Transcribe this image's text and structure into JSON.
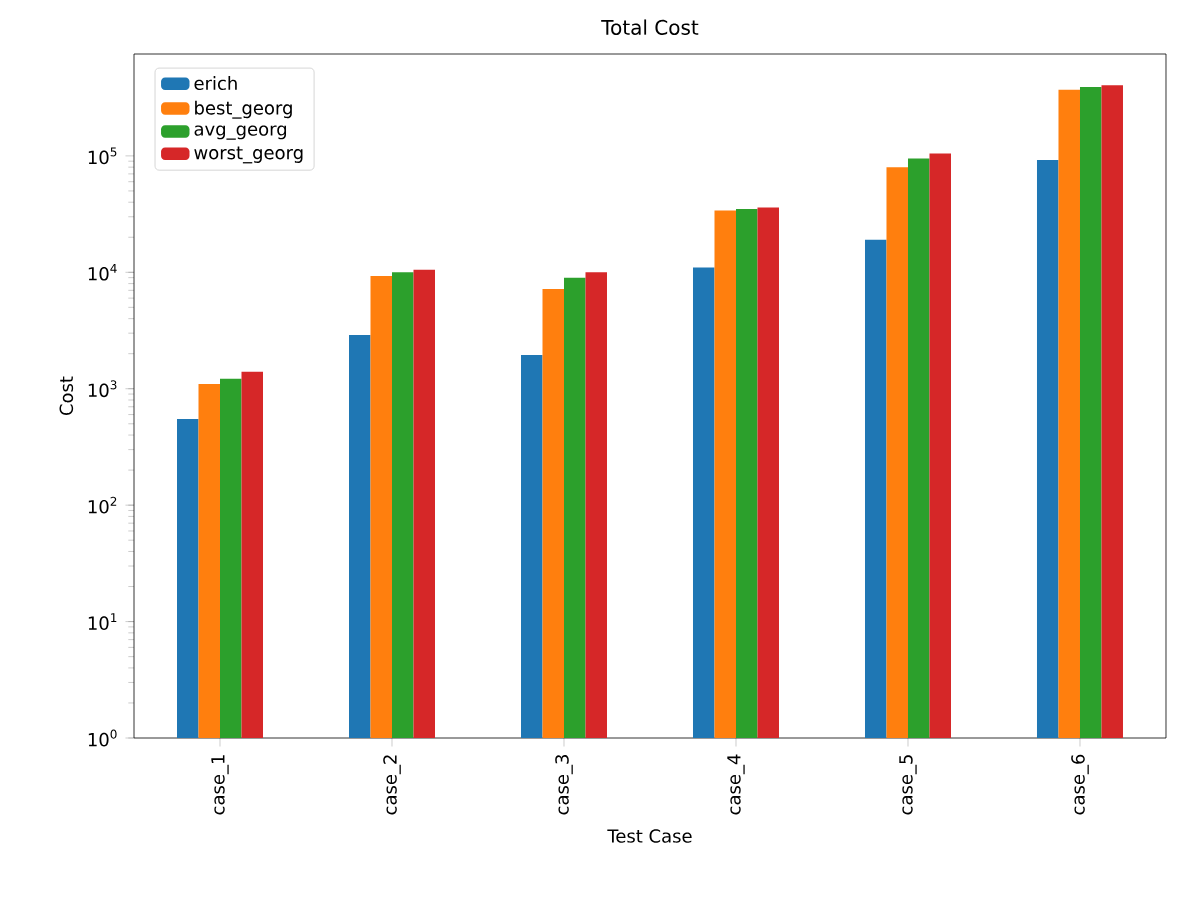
{
  "chart_data": {
    "type": "bar",
    "title": "Total Cost",
    "xlabel": "Test Case",
    "ylabel": "Cost",
    "categories": [
      "case_1",
      "case_2",
      "case_3",
      "case_4",
      "case_5",
      "case_6"
    ],
    "series": [
      {
        "name": "erich",
        "color": "#1f77b4",
        "values": [
          550,
          2900,
          1950,
          11000,
          19000,
          92000
        ]
      },
      {
        "name": "best_georg",
        "color": "#ff7f0e",
        "values": [
          1100,
          9300,
          7200,
          34000,
          80000,
          370000
        ]
      },
      {
        "name": "avg_georg",
        "color": "#2ca02c",
        "values": [
          1220,
          10000,
          9000,
          35000,
          95000,
          390000
        ]
      },
      {
        "name": "worst_georg",
        "color": "#d62728",
        "values": [
          1400,
          10500,
          10000,
          36000,
          105000,
          405000
        ]
      }
    ],
    "log": "y",
    "ylim": [
      1,
      750000
    ],
    "yticks": [
      {
        "value": 1,
        "label": "10$^{0}$"
      },
      {
        "value": 10,
        "label": "10$^{1}$"
      },
      {
        "value": 100,
        "label": "10$^{2}$"
      },
      {
        "value": 1000,
        "label": "10$^{3}$"
      },
      {
        "value": 10000,
        "label": "10$^{4}$"
      },
      {
        "value": 100000,
        "label": "10$^{5}$"
      }
    ],
    "legend": "top left",
    "grid": false
  }
}
